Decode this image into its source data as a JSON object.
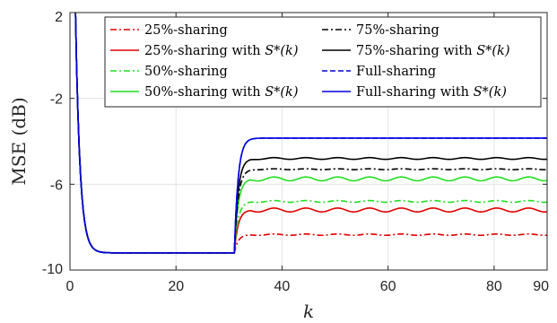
{
  "chart_data": {
    "type": "line",
    "xlabel": "k",
    "ylabel": "MSE (dB)",
    "xlim": [
      0,
      90
    ],
    "ylim": [
      -10,
      2
    ],
    "xticks": [
      0,
      20,
      40,
      60,
      80,
      90
    ],
    "yticks": [
      2,
      -2,
      -6,
      -10
    ],
    "xtick_labels": [
      "0",
      "20",
      "40",
      "60",
      "80",
      "90"
    ],
    "ytick_labels": [
      "2",
      "-2",
      "-6",
      "-10"
    ],
    "grid": true,
    "legend_position": "top-right",
    "change_point": 31,
    "series": [
      {
        "name": "25%-sharing",
        "label_main": "25%-sharing",
        "label_math": "",
        "color": "#e00000",
        "dash": "dashdot",
        "initial": 2.5,
        "floor": -9.2,
        "final": -8.35,
        "ripple": 0.03
      },
      {
        "name": "25%-sharing with S*(k)",
        "label_main": "25%-sharing with ",
        "label_math": "S*(k)",
        "color": "#e00000",
        "dash": "solid",
        "initial": 2.5,
        "floor": -9.2,
        "final": -7.2,
        "ripple": 0.09
      },
      {
        "name": "50%-sharing",
        "label_main": "50%-sharing",
        "label_math": "",
        "color": "#22dd22",
        "dash": "dashdot",
        "initial": 2.5,
        "floor": -9.2,
        "final": -6.8,
        "ripple": 0.04
      },
      {
        "name": "50%-sharing with S*(k)",
        "label_main": "50%-sharing with ",
        "label_math": "S*(k)",
        "color": "#22dd22",
        "dash": "solid",
        "initial": 2.5,
        "floor": -9.2,
        "final": -5.75,
        "ripple": 0.09
      },
      {
        "name": "75%-sharing",
        "label_main": "75%-sharing",
        "label_math": "",
        "color": "#000000",
        "dash": "dashdot",
        "initial": 2.5,
        "floor": -9.2,
        "final": -5.3,
        "ripple": 0.02
      },
      {
        "name": "75%-sharing with S*(k)",
        "label_main": "75%-sharing with ",
        "label_math": "S*(k)",
        "color": "#000000",
        "dash": "solid",
        "initial": 2.5,
        "floor": -9.2,
        "final": -4.8,
        "ripple": 0.04
      },
      {
        "name": "Full-sharing",
        "label_main": "Full-sharing",
        "label_math": "",
        "color": "#0000dd",
        "dash": "dashed",
        "initial": 2.5,
        "floor": -9.2,
        "final": -3.85,
        "ripple": 0.0
      },
      {
        "name": "Full-sharing with S*(k)",
        "label_main": "Full-sharing with ",
        "label_math": "S*(k)",
        "color": "#0000dd",
        "dash": "solid",
        "initial": 2.5,
        "floor": -9.2,
        "final": -3.85,
        "ripple": 0.0
      }
    ]
  }
}
